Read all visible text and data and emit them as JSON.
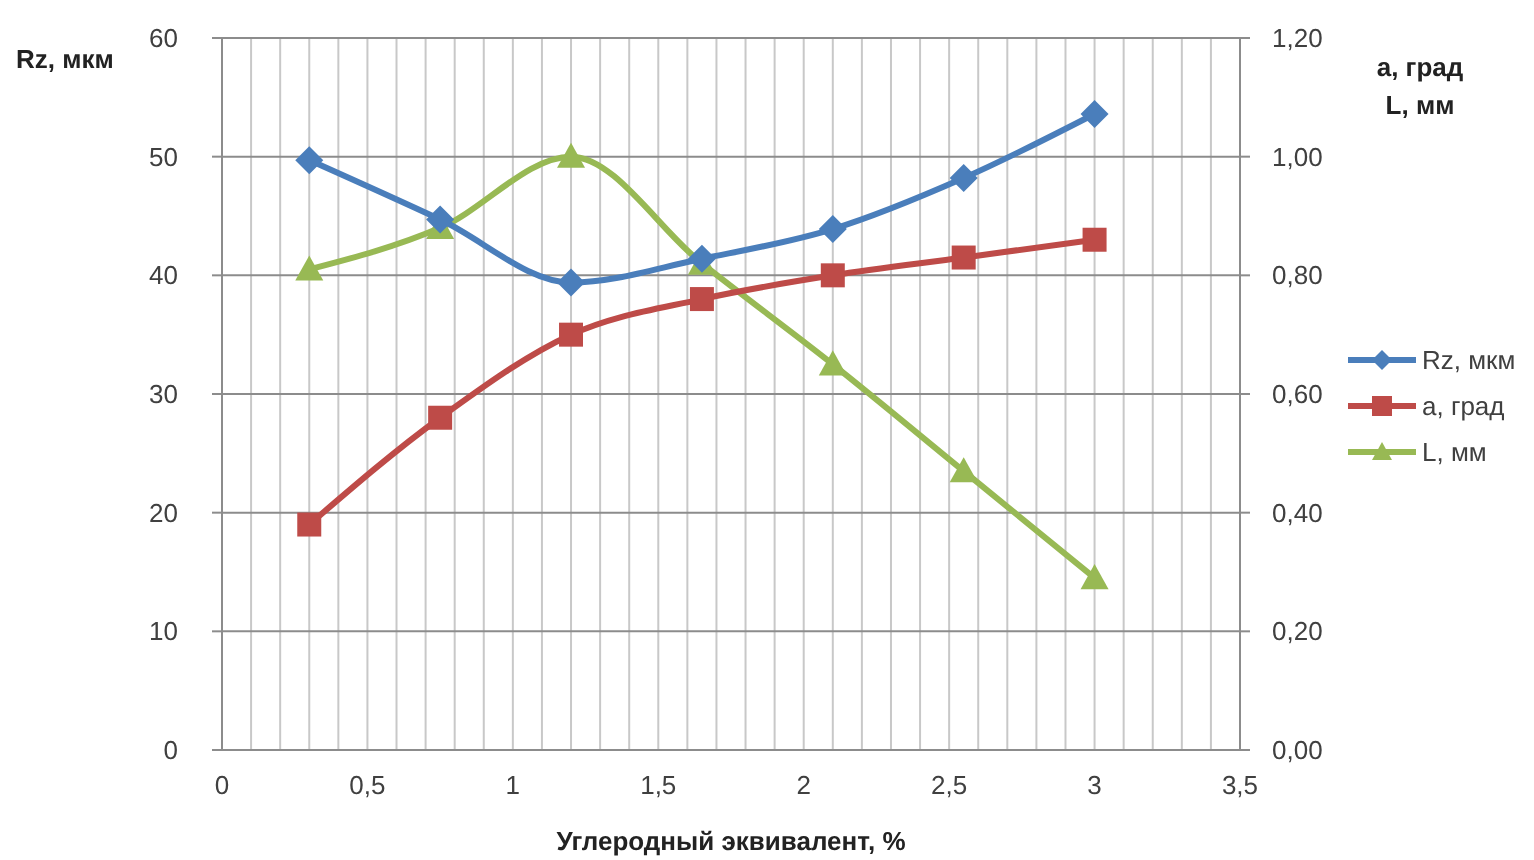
{
  "chart_data": {
    "type": "line",
    "xlabel": "Углеродный эквивалент, %",
    "ylabel": "Rz, мкм",
    "y2label": "а, град\nL, мм",
    "x": [
      0.3,
      0.75,
      1.2,
      1.65,
      2.1,
      2.55,
      3.0
    ],
    "xlim": [
      0,
      3.5
    ],
    "xticks": [
      0,
      {
        "value": 0.1,
        "label": null
      },
      {
        "value": 0.2,
        "label": null
      },
      {
        "value": 0.3,
        "label": null
      },
      {
        "value": 0.4,
        "label": null
      },
      {
        "value": 0.5,
        "label": "0,5"
      },
      {
        "value": 0.6,
        "label": null
      },
      {
        "value": 0.7,
        "label": null
      },
      {
        "value": 0.8,
        "label": null
      },
      {
        "value": 0.9,
        "label": null
      },
      1,
      {
        "value": 1.1,
        "label": null
      },
      {
        "value": 1.2,
        "label": null
      },
      {
        "value": 1.3,
        "label": null
      },
      {
        "value": 1.4,
        "label": null
      },
      {
        "value": 1.5,
        "label": "1,5"
      },
      {
        "value": 1.6,
        "label": null
      },
      {
        "value": 1.7,
        "label": null
      },
      {
        "value": 1.8,
        "label": null
      },
      {
        "value": 1.9,
        "label": null
      },
      2,
      {
        "value": 2.1,
        "label": null
      },
      {
        "value": 2.2,
        "label": null
      },
      {
        "value": 2.3,
        "label": null
      },
      {
        "value": 2.4,
        "label": null
      },
      {
        "value": 2.5,
        "label": "2,5"
      },
      {
        "value": 2.6,
        "label": null
      },
      {
        "value": 2.7,
        "label": null
      },
      {
        "value": 2.8,
        "label": null
      },
      {
        "value": 2.9,
        "label": null
      },
      3,
      {
        "value": 3.1,
        "label": null
      },
      {
        "value": 3.2,
        "label": null
      },
      {
        "value": 3.3,
        "label": null
      },
      {
        "value": 3.4,
        "label": null
      },
      {
        "value": 3.5,
        "label": "3,5"
      }
    ],
    "ylim": [
      0,
      60
    ],
    "yticks": [
      0,
      10,
      20,
      30,
      40,
      50,
      60
    ],
    "y2lim": [
      0,
      1.2
    ],
    "y2ticks": [
      {
        "value": 0,
        "label": "0,00"
      },
      {
        "value": 0.2,
        "label": "0,20"
      },
      {
        "value": 0.4,
        "label": "0,40"
      },
      {
        "value": 0.6,
        "label": "0,60"
      },
      {
        "value": 0.8,
        "label": "0,80"
      },
      {
        "value": 1.0,
        "label": "1,00"
      },
      {
        "value": 1.2,
        "label": "1,20"
      }
    ],
    "grid": true,
    "legend": "right",
    "line_style": "solid",
    "series": [
      {
        "name": "Rz, мкм",
        "color": "#4a7ebb",
        "marker": "diamond",
        "values": [
          49.7,
          44.7,
          39.4,
          41.4,
          43.9,
          48.2,
          53.6
        ]
      },
      {
        "name": "а, град",
        "color": "#be4b48",
        "marker": "square",
        "axis": "y2",
        "values": [
          0.38,
          0.56,
          0.7,
          0.76,
          0.8,
          0.83,
          0.86
        ]
      },
      {
        "name": "L, мм",
        "color": "#98b954",
        "marker": "triangle",
        "axis": "y2",
        "values": [
          0.81,
          0.88,
          1.0,
          0.82,
          0.65,
          0.47,
          0.29
        ]
      }
    ]
  }
}
